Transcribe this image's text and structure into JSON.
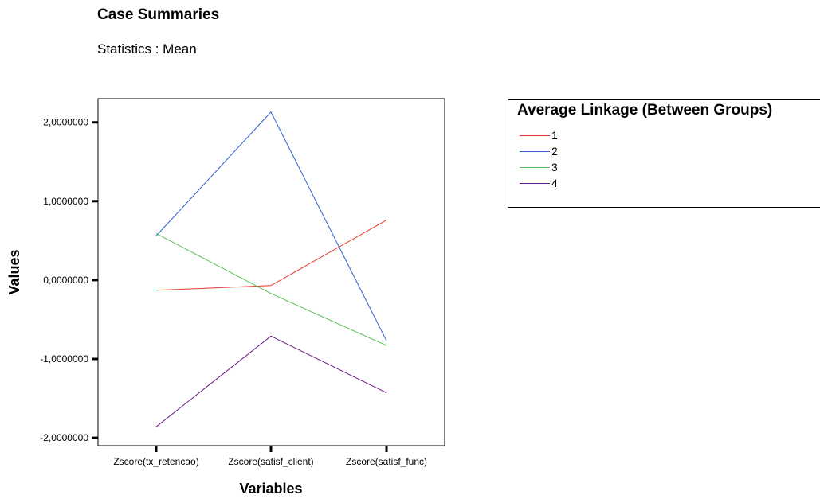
{
  "header": {
    "title": "Case Summaries",
    "subtitle": "Statistics : Mean"
  },
  "chart_data": {
    "type": "line",
    "title": "Case Summaries",
    "subtitle": "Statistics : Mean",
    "xlabel": "Variables",
    "ylabel": "Values",
    "categories": [
      "Zscore(tx_retencao)",
      "Zscore(satisf_client)",
      "Zscore(satisf_func)"
    ],
    "ylim": [
      -2.1,
      2.3
    ],
    "yticks": [
      -2,
      -1,
      0,
      1,
      2
    ],
    "ytick_labels": [
      "-2,0000000",
      "-1,0000000",
      "0,0000000",
      "1,0000000",
      "2,0000000"
    ],
    "grid": false,
    "legend": {
      "title": "Average Linkage (Between Groups)",
      "placement": "right"
    },
    "series": [
      {
        "name": "1",
        "color": "#e8382f",
        "values": [
          -0.13,
          -0.07,
          0.76
        ]
      },
      {
        "name": "2",
        "color": "#2f63d1",
        "values": [
          0.56,
          2.13,
          -0.77
        ]
      },
      {
        "name": "3",
        "color": "#58c15a",
        "values": [
          0.59,
          -0.17,
          -0.83
        ]
      },
      {
        "name": "4",
        "color": "#6b1a8f",
        "values": [
          -1.86,
          -0.71,
          -1.43
        ]
      }
    ]
  }
}
